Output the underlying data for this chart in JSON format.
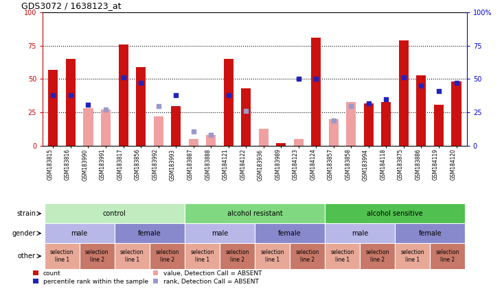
{
  "title": "GDS3072 / 1638123_at",
  "samples": [
    "GSM183815",
    "GSM183816",
    "GSM183990",
    "GSM183991",
    "GSM183817",
    "GSM183856",
    "GSM183992",
    "GSM183993",
    "GSM183887",
    "GSM183888",
    "GSM184121",
    "GSM184122",
    "GSM183936",
    "GSM183989",
    "GSM184123",
    "GSM184124",
    "GSM183857",
    "GSM183858",
    "GSM183994",
    "GSM184118",
    "GSM183875",
    "GSM183886",
    "GSM184119",
    "GSM184120"
  ],
  "red_bars": [
    57,
    65,
    0,
    0,
    76,
    59,
    0,
    30,
    0,
    0,
    65,
    43,
    0,
    2,
    0,
    81,
    0,
    0,
    32,
    33,
    79,
    53,
    31,
    48
  ],
  "pink_bars": [
    0,
    0,
    28,
    27,
    0,
    0,
    22,
    0,
    5,
    8,
    0,
    0,
    13,
    0,
    5,
    0,
    20,
    33,
    0,
    0,
    0,
    0,
    0,
    0
  ],
  "blue_sq": [
    38,
    38,
    31,
    0,
    51,
    47,
    0,
    38,
    0,
    0,
    38,
    0,
    0,
    0,
    50,
    50,
    0,
    0,
    32,
    35,
    51,
    45,
    41,
    47
  ],
  "light_blue_sq": [
    0,
    0,
    0,
    27,
    0,
    0,
    30,
    0,
    11,
    8,
    0,
    26,
    0,
    0,
    0,
    0,
    19,
    30,
    0,
    0,
    0,
    0,
    0,
    0
  ],
  "strain_groups": [
    {
      "label": "control",
      "start": 0,
      "end": 8,
      "color": "#c0ecc0"
    },
    {
      "label": "alcohol resistant",
      "start": 8,
      "end": 16,
      "color": "#80d880"
    },
    {
      "label": "alcohol sensitive",
      "start": 16,
      "end": 24,
      "color": "#50c050"
    }
  ],
  "gender_groups": [
    {
      "label": "male",
      "start": 0,
      "end": 4,
      "color": "#b8b8e8"
    },
    {
      "label": "female",
      "start": 4,
      "end": 8,
      "color": "#8888cc"
    },
    {
      "label": "male",
      "start": 8,
      "end": 12,
      "color": "#b8b8e8"
    },
    {
      "label": "female",
      "start": 12,
      "end": 16,
      "color": "#8888cc"
    },
    {
      "label": "male",
      "start": 16,
      "end": 20,
      "color": "#b8b8e8"
    },
    {
      "label": "female",
      "start": 20,
      "end": 24,
      "color": "#8888cc"
    }
  ],
  "other_groups": [
    {
      "label": "selection\nline 1",
      "start": 0,
      "end": 2,
      "color": "#e8a898"
    },
    {
      "label": "selection\nline 2",
      "start": 2,
      "end": 4,
      "color": "#c87868"
    },
    {
      "label": "selection\nline 1",
      "start": 4,
      "end": 6,
      "color": "#e8a898"
    },
    {
      "label": "selection\nline 2",
      "start": 6,
      "end": 8,
      "color": "#c87868"
    },
    {
      "label": "selection\nline 1",
      "start": 8,
      "end": 10,
      "color": "#e8a898"
    },
    {
      "label": "selection\nline 2",
      "start": 10,
      "end": 12,
      "color": "#c87868"
    },
    {
      "label": "selection\nline 1",
      "start": 12,
      "end": 14,
      "color": "#e8a898"
    },
    {
      "label": "selection\nline 2",
      "start": 14,
      "end": 16,
      "color": "#c87868"
    },
    {
      "label": "selection\nline 1",
      "start": 16,
      "end": 18,
      "color": "#e8a898"
    },
    {
      "label": "selection\nline 2",
      "start": 18,
      "end": 20,
      "color": "#c87868"
    },
    {
      "label": "selection\nline 1",
      "start": 20,
      "end": 22,
      "color": "#e8a898"
    },
    {
      "label": "selection\nline 2",
      "start": 22,
      "end": 24,
      "color": "#c87868"
    }
  ],
  "yticks": [
    0,
    25,
    50,
    75,
    100
  ],
  "red_color": "#cc1111",
  "pink_color": "#f0a0a0",
  "blue_color": "#2222bb",
  "light_blue_color": "#9999cc",
  "left_yaxis_color": "#cc0000",
  "right_yaxis_color": "#0000cc",
  "tick_bg_color": "#d8d8d8",
  "bg_color": "#ffffff",
  "legend_items": [
    {
      "color": "#cc1111",
      "label": "count"
    },
    {
      "color": "#2222bb",
      "label": "percentile rank within the sample"
    },
    {
      "color": "#f0a0a0",
      "label": "value, Detection Call = ABSENT"
    },
    {
      "color": "#9999cc",
      "label": "rank, Detection Call = ABSENT"
    }
  ]
}
